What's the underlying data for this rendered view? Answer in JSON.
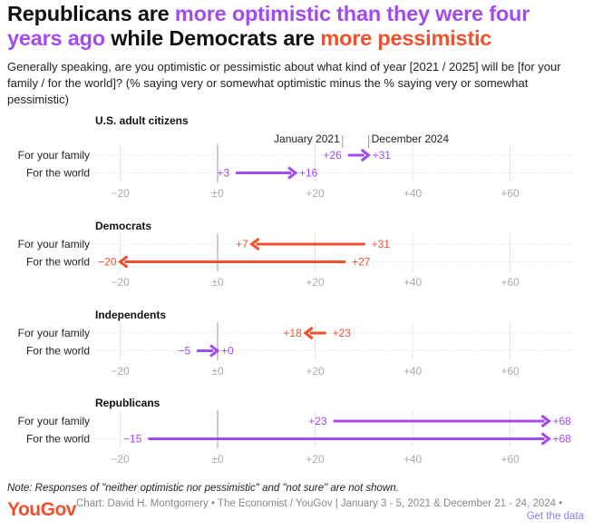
{
  "title": {
    "part1": "Republicans are ",
    "part2": "more optimistic than they were four years ago",
    "part3": " while Democrats are ",
    "part4": "more pessimistic"
  },
  "subtitle": "Generally speaking, are you optimistic or pessimistic about what kind of year [2021 / 2025] will be [for your family / for the world]? (% saying very or somewhat optimistic minus the % saying very or somewhat pessimistic)",
  "colors": {
    "optimistic": "#a24bf0",
    "pessimistic": "#f0502e"
  },
  "chart_data": {
    "type": "arrow-dot",
    "xlim": [
      -25,
      72
    ],
    "ticks": [
      -20,
      0,
      20,
      40,
      60
    ],
    "tick_labels": [
      "−20",
      "±0",
      "+20",
      "+40",
      "+60"
    ],
    "legend": {
      "start": "January 2021",
      "end": "December 2024"
    },
    "panels": [
      {
        "title": "U.S. adult citizens",
        "rows": [
          {
            "label": "For your family",
            "start": 26,
            "end": 31
          },
          {
            "label": "For the world",
            "start": 3,
            "end": 16
          }
        ]
      },
      {
        "title": "Democrats",
        "rows": [
          {
            "label": "For your family",
            "start": 31,
            "end": 7
          },
          {
            "label": "For the world",
            "start": 27,
            "end": -20
          }
        ]
      },
      {
        "title": "Independents",
        "rows": [
          {
            "label": "For your family",
            "start": 23,
            "end": 18
          },
          {
            "label": "For the world",
            "start": -5,
            "end": 0
          }
        ]
      },
      {
        "title": "Republicans",
        "rows": [
          {
            "label": "For your family",
            "start": 23,
            "end": 68
          },
          {
            "label": "For the world",
            "start": -15,
            "end": 68
          }
        ]
      }
    ]
  },
  "footer": {
    "note": "Note: Responses of \"neither optimistic nor pessimistic\" and \"not sure\" are not shown.",
    "logo": "YouGov",
    "credit": "Chart: David H. Montgomery • The Economist / YouGov | January 3 - 5, 2021 & December 21 - 24, 2024 •",
    "get_data": "Get the data"
  }
}
